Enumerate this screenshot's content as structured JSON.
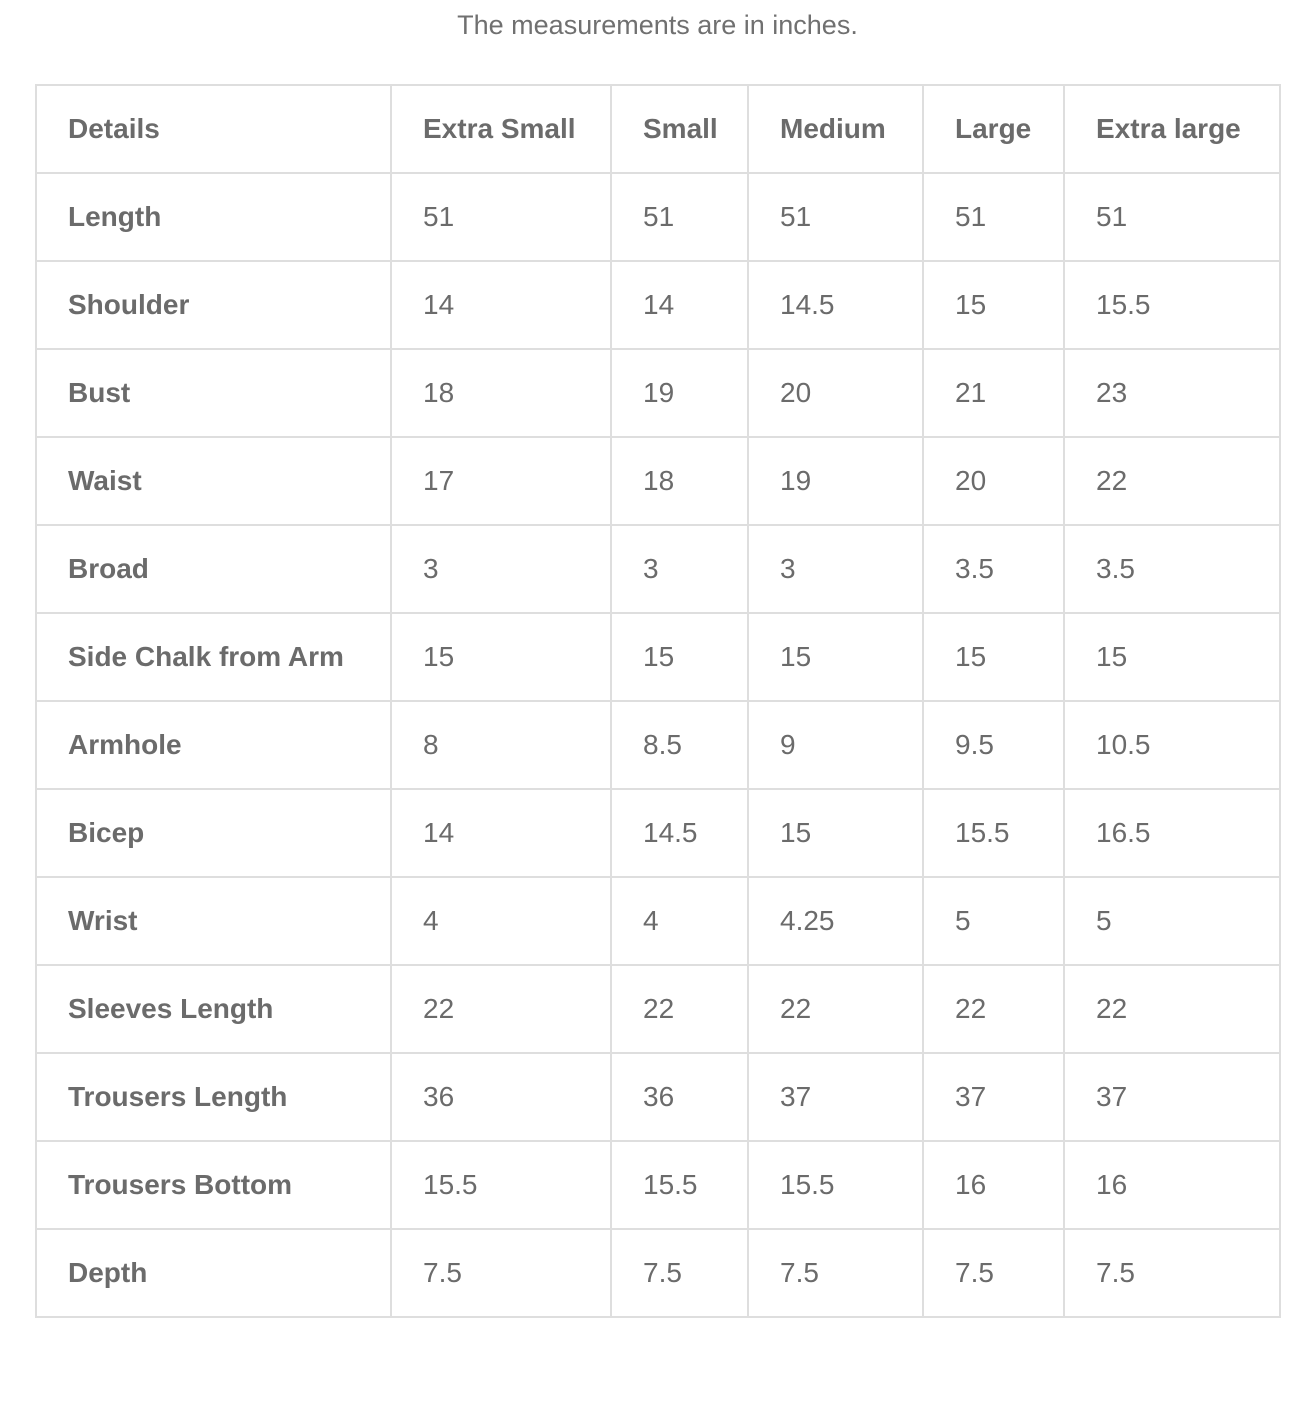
{
  "caption": "The measurements are in inches.",
  "table": {
    "headers": [
      "Details",
      "Extra Small",
      "Small",
      "Medium",
      "Large",
      "Extra large"
    ],
    "rows": [
      [
        "Length",
        "51",
        "51",
        "51",
        "51",
        "51"
      ],
      [
        "Shoulder",
        "14",
        "14",
        "14.5",
        "15",
        "15.5"
      ],
      [
        "Bust",
        "18",
        "19",
        "20",
        "21",
        "23"
      ],
      [
        "Waist",
        "17",
        "18",
        "19",
        "20",
        "22"
      ],
      [
        "Broad",
        "3",
        "3",
        "3",
        "3.5",
        "3.5"
      ],
      [
        "Side Chalk from Arm",
        "15",
        "15",
        "15",
        "15",
        "15"
      ],
      [
        "Armhole",
        "8",
        "8.5",
        "9",
        "9.5",
        "10.5"
      ],
      [
        "Bicep",
        "14",
        "14.5",
        "15",
        "15.5",
        "16.5"
      ],
      [
        "Wrist",
        "4",
        "4",
        "4.25",
        "5",
        "5"
      ],
      [
        "Sleeves Length",
        "22",
        "22",
        "22",
        "22",
        "22"
      ],
      [
        "Trousers Length",
        "36",
        "36",
        "37",
        "37",
        "37"
      ],
      [
        "Trousers Bottom",
        "15.5",
        "15.5",
        "15.5",
        "16",
        "16"
      ],
      [
        "Depth",
        "7.5",
        "7.5",
        "7.5",
        "7.5",
        "7.5"
      ]
    ]
  }
}
